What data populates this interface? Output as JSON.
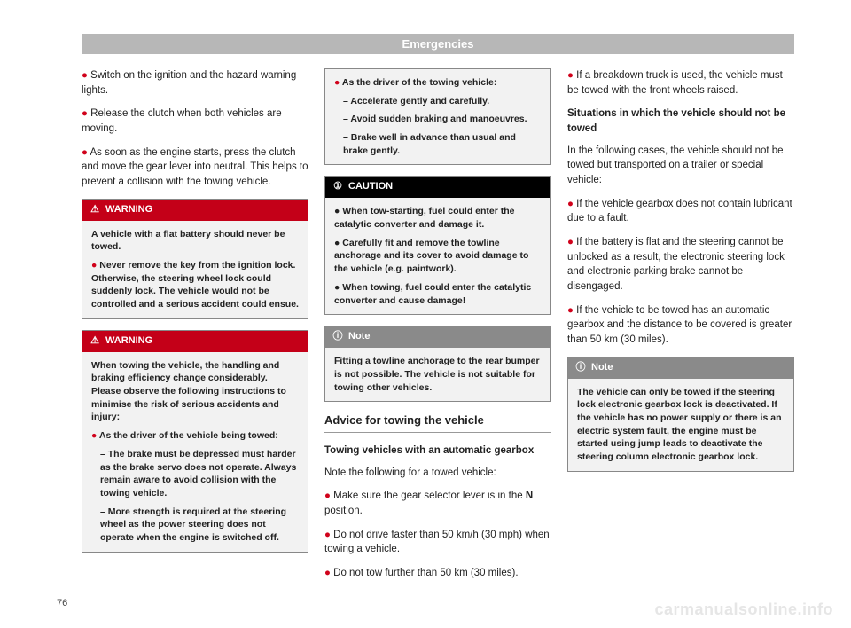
{
  "header": {
    "title": "Emergencies"
  },
  "col1": {
    "bullets": [
      "Switch on the ignition and the hazard warning lights.",
      "Release the clutch when both vehicles are moving.",
      "As soon as the engine starts, press the clutch and move the gear lever into neutral. This helps to prevent a collision with the towing vehicle."
    ],
    "warning1": {
      "label": "WARNING",
      "p1": "A vehicle with a flat battery should never be towed.",
      "p2": "Never remove the key from the ignition lock. Otherwise, the steering wheel lock could suddenly lock. The vehicle would not be controlled and a serious accident could ensue."
    },
    "warning2": {
      "label": "WARNING",
      "p1": "When towing the vehicle, the handling and braking efficiency change considerably. Please observe the following instructions to minimise the risk of serious accidents and injury:",
      "p2": "As the driver of the vehicle being towed:",
      "p2a": "The brake must be depressed must harder as the brake servo does not operate. Always remain aware to avoid collision with the towing vehicle.",
      "p2b": "More strength is required at the steering wheel as the power steering does not operate when the engine is switched off."
    }
  },
  "col2": {
    "warning2cont": {
      "p3": "As the driver of the towing vehicle:",
      "p3a": "Accelerate gently and carefully.",
      "p3b": "Avoid sudden braking and manoeuvres.",
      "p3c": "Brake well in advance than usual and brake gently."
    },
    "caution": {
      "label": "CAUTION",
      "p1": "When tow-starting, fuel could enter the catalytic converter and damage it.",
      "p2": "Carefully fit and remove the towline anchorage and its cover to avoid damage to the vehicle (e.g. paintwork).",
      "p3": "When towing, fuel could enter the catalytic converter and cause damage!"
    },
    "note": {
      "label": "Note",
      "p1": "Fitting a towline anchorage to the rear bumper is not possible. The vehicle is not suitable for towing other vehicles."
    },
    "section_title": "Advice for towing the vehicle",
    "subhead": "Towing vehicles with an automatic gearbox",
    "lead": "Note the following for a towed vehicle:",
    "bullets": [
      "Make sure the gear selector lever is in the <b>N</b> position.",
      "Do not drive faster than 50 km/h (30 mph) when towing a vehicle.",
      "Do not tow further than 50 km (30 miles)."
    ]
  },
  "col3": {
    "bullets1": [
      "If a breakdown truck is used, the vehicle must be towed with the front wheels raised."
    ],
    "subhead": "Situations in which the vehicle should not be towed",
    "lead": "In the following cases, the vehicle should not be towed but transported on a trailer or special vehicle:",
    "bullets2": [
      "If the vehicle gearbox does not contain lubricant due to a fault.",
      "If the battery is flat and the steering cannot be unlocked as a result, the electronic steering lock and electronic parking brake cannot be disengaged.",
      "If the vehicle to be towed has an automatic gearbox and the distance to be covered is greater than 50 km (30 miles)."
    ],
    "note": {
      "label": "Note",
      "p1": "The vehicle can only be towed if the steering lock electronic gearbox lock is deactivated. If the vehicle has no power supply or there is an electric system fault, the engine must be started using jump leads to deactivate the steering column electronic gearbox lock."
    }
  },
  "page_number": "76",
  "watermark": "carmanualsonline.info",
  "icons": {
    "triangle": "⚠",
    "circle": "ⓘ",
    "info": "ⓘ"
  },
  "colors": {
    "red": "#c40018",
    "black": "#000000",
    "grey_header": "#b7b7b7",
    "box_bg": "#f2f2f2"
  }
}
